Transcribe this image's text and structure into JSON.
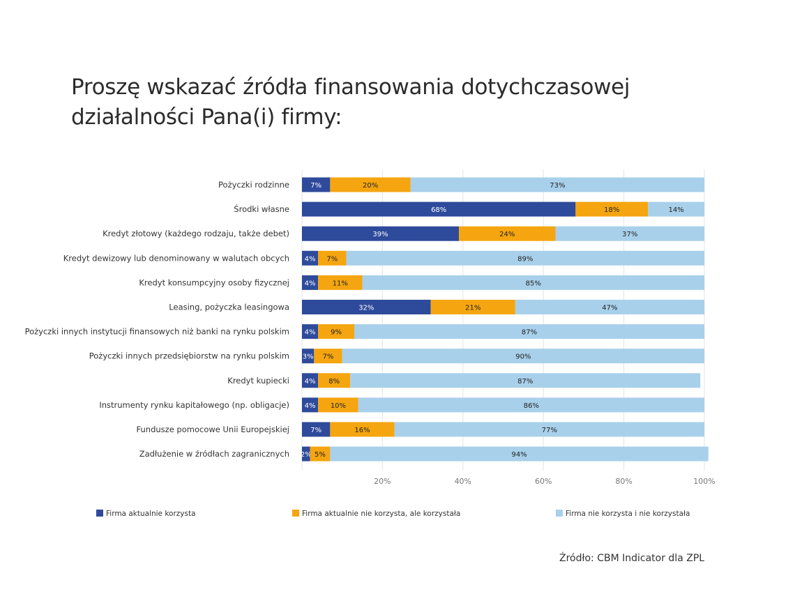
{
  "chart_data": {
    "type": "bar",
    "orientation": "horizontal",
    "stacked": true,
    "title_lines": [
      "Proszę wskazać źródła finansowania dotychczasowej",
      "działalności Pana(i) firmy:"
    ],
    "categories": [
      "Pożyczki rodzinne",
      "Środki własne",
      "Kredyt złotowy (każdego rodzaju, także debet)",
      "Kredyt dewizowy lub denominowany w walutach obcych",
      "Kredyt konsumpcyjny osoby fizycznej",
      "Leasing, pożyczka leasingowa",
      "Pożyczki innych instytucji finansowych niż banki na rynku polskim",
      "Pożyczki innych przedsiębiorstw na rynku polskim",
      "Kredyt kupiecki",
      "Instrumenty rynku kapitałowego (np. obligacje)",
      "Fundusze pomocowe Unii Europejskiej",
      "Zadłużenie w źródłach zagranicznych"
    ],
    "series": [
      {
        "name": "Firma aktualnie korzysta",
        "color": "#2E4A9B",
        "label_color": "#ffffff",
        "values": [
          7,
          68,
          39,
          4,
          4,
          32,
          4,
          3,
          4,
          4,
          7,
          2
        ]
      },
      {
        "name": "Firma aktualnie nie korzysta, ale korzystała",
        "color": "#F5A50F",
        "label_color": "#222222",
        "values": [
          20,
          18,
          24,
          7,
          11,
          21,
          9,
          7,
          8,
          10,
          16,
          5
        ]
      },
      {
        "name": "Firma nie korzysta i nie korzystała",
        "color": "#A8D0EB",
        "label_color": "#222222",
        "values": [
          73,
          14,
          37,
          89,
          85,
          47,
          87,
          90,
          87,
          86,
          77,
          94
        ]
      }
    ],
    "value_labels": [
      [
        "7%",
        "20%",
        "73%"
      ],
      [
        "68%",
        "18%",
        "14%"
      ],
      [
        "39%",
        "24%",
        "37%"
      ],
      [
        "4%",
        "7%",
        "89%"
      ],
      [
        "4%",
        "11%",
        "85%"
      ],
      [
        "32%",
        "21%",
        "47%"
      ],
      [
        "4%",
        "9%",
        "87%"
      ],
      [
        "3%",
        "7%",
        "90%"
      ],
      [
        "4%",
        "8%",
        "87%"
      ],
      [
        "4%",
        "10%",
        "86%"
      ],
      [
        "7%",
        "16%",
        "77%"
      ],
      [
        "2%",
        "5%",
        "94%"
      ]
    ],
    "xlim": [
      0,
      100
    ],
    "xticks": [
      "20%",
      "40%",
      "60%",
      "80%",
      "100%"
    ],
    "xtick_values": [
      20,
      40,
      60,
      80,
      100
    ],
    "grid": true,
    "legend_position": "bottom"
  },
  "source": "Źródło: CBM Indicator dla ZPL"
}
